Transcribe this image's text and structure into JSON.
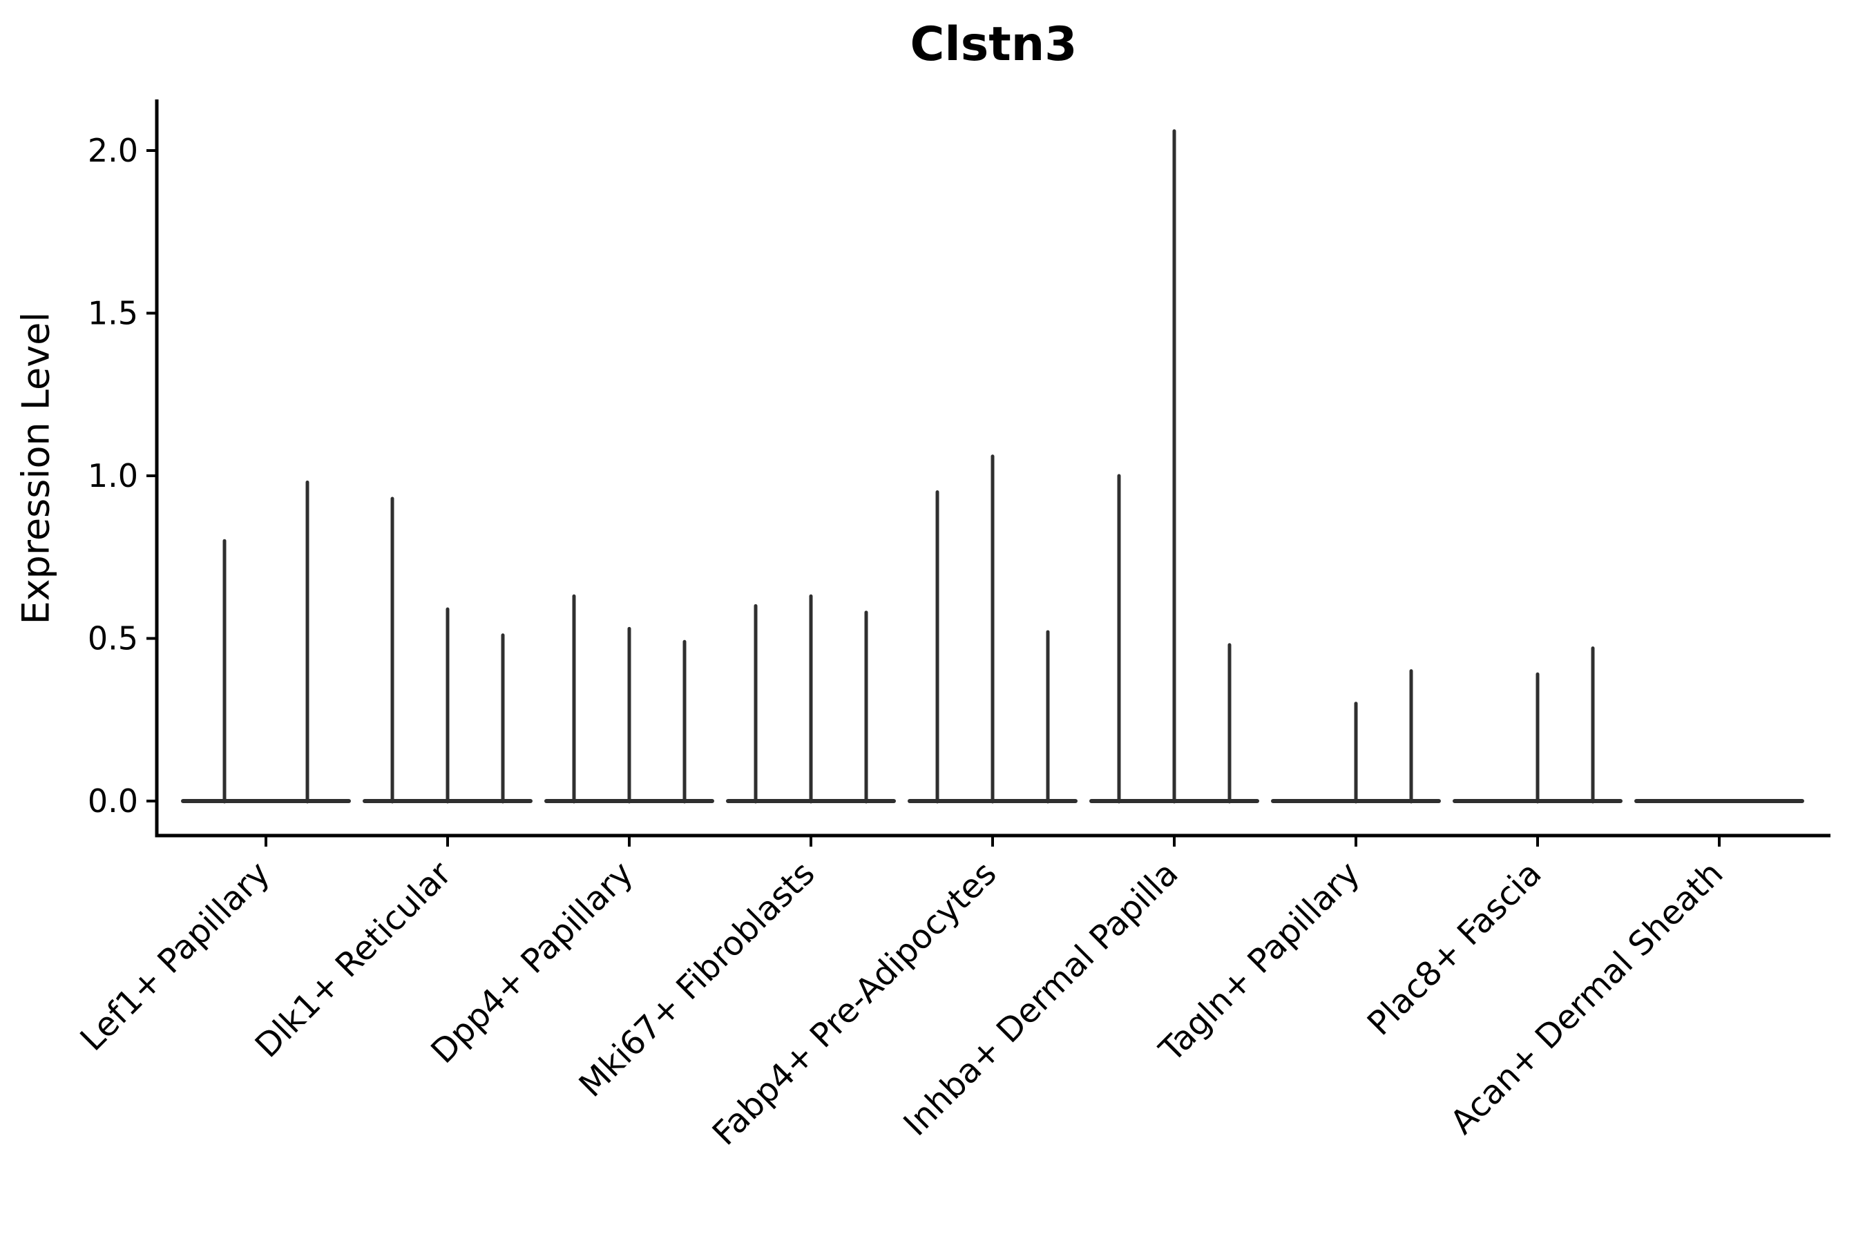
{
  "chart_data": {
    "type": "violin",
    "title": "Clstn3",
    "ylabel": "Expression Level",
    "xlabel": "",
    "grid": false,
    "legend_position": "none",
    "ylim": [
      -0.106,
      2.157
    ],
    "yticks": [
      0.0,
      0.5,
      1.0,
      1.5,
      2.0
    ],
    "ytick_labels": [
      "0.0",
      "0.5",
      "1.0",
      "1.5",
      "2.0"
    ],
    "categories": [
      "Lef1+ Papillary",
      "Dlk1+ Reticular",
      "Dpp4+ Papillary",
      "Mki67+ Fibroblasts",
      "Fabp4+ Pre-Adipocytes",
      "Inhba+ Dermal Papilla",
      "Tagln+ Papillary",
      "Plac8+ Fascia",
      "Acan+ Dermal Sheath"
    ],
    "groups": [
      {
        "label": "Lef1+ Papillary",
        "violin_max_values": [
          0.8,
          0.98
        ]
      },
      {
        "label": "Dlk1+ Reticular",
        "violin_max_values": [
          0.93,
          0.59,
          0.51
        ]
      },
      {
        "label": "Dpp4+ Papillary",
        "violin_max_values": [
          0.63,
          0.53,
          0.49
        ]
      },
      {
        "label": "Mki67+ Fibroblasts",
        "violin_max_values": [
          0.6,
          0.63,
          0.58
        ]
      },
      {
        "label": "Fabp4+ Pre-Adipocytes",
        "violin_max_values": [
          0.95,
          1.06,
          0.52
        ]
      },
      {
        "label": "Inhba+ Dermal Papilla",
        "violin_max_values": [
          1.0,
          2.06,
          0.48
        ]
      },
      {
        "label": "Tagln+ Papillary",
        "violin_max_values": [
          0,
          0.3,
          0.4
        ]
      },
      {
        "label": "Plac8+ Fascia",
        "violin_max_values": [
          0,
          0.39,
          0.47
        ]
      },
      {
        "label": "Acan+ Dermal Sheath",
        "violin_max_values": [
          0,
          0,
          0
        ]
      }
    ],
    "annotation": "violins collapsed at 0 with thin density spikes up to each group maximum",
    "colors": {
      "background": "#ffffff",
      "axis": "#000000",
      "text": "#000000",
      "violin_stroke": "#2f2f2f"
    }
  }
}
